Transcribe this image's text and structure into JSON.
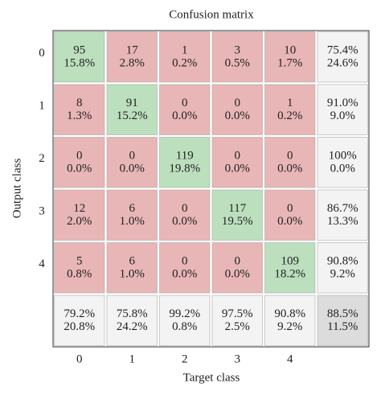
{
  "chart_data": {
    "type": "confusion_matrix",
    "title": "Confusion matrix",
    "xlabel": "Target class",
    "ylabel": "Output class",
    "categories": [
      "0",
      "1",
      "2",
      "3",
      "4"
    ],
    "values": [
      [
        95,
        17,
        1,
        3,
        10
      ],
      [
        8,
        91,
        0,
        0,
        1
      ],
      [
        0,
        0,
        119,
        0,
        0
      ],
      [
        12,
        6,
        0,
        117,
        0
      ],
      [
        5,
        6,
        0,
        0,
        109
      ]
    ],
    "percent": {
      "values": [
        [
          15.8,
          2.8,
          0.2,
          0.5,
          1.7
        ],
        [
          1.3,
          15.2,
          0.0,
          0.0,
          0.2
        ],
        [
          0.0,
          0.0,
          19.8,
          0.0,
          0.0
        ],
        [
          2.0,
          1.0,
          0.0,
          19.5,
          0.0
        ],
        [
          0.8,
          1.0,
          0.0,
          0.0,
          18.2
        ]
      ],
      "value_labels": [
        [
          "15.8%",
          "2.8%",
          "0.2%",
          "0.5%",
          "1.7%"
        ],
        [
          "1.3%",
          "15.2%",
          "0.0%",
          "0.0%",
          "0.2%"
        ],
        [
          "0.0%",
          "0.0%",
          "19.8%",
          "0.0%",
          "0.0%"
        ],
        [
          "2.0%",
          "1.0%",
          "0.0%",
          "19.5%",
          "0.0%"
        ],
        [
          "0.8%",
          "1.0%",
          "0.0%",
          "0.0%",
          "18.2%"
        ]
      ]
    },
    "row_summary": {
      "correct": {
        "values": [
          75.4,
          91.0,
          100,
          86.7,
          90.8
        ],
        "value_labels": [
          "75.4%",
          "91.0%",
          "100%",
          "86.7%",
          "90.8%"
        ]
      },
      "error": {
        "values": [
          24.6,
          9.0,
          0.0,
          13.3,
          9.2
        ],
        "value_labels": [
          "24.6%",
          "9.0%",
          "0.0%",
          "13.3%",
          "9.2%"
        ]
      }
    },
    "col_summary": {
      "correct": {
        "values": [
          79.2,
          75.8,
          99.2,
          97.5,
          90.8
        ],
        "value_labels": [
          "79.2%",
          "75.8%",
          "99.2%",
          "97.5%",
          "90.8%"
        ]
      },
      "error": {
        "values": [
          20.8,
          24.2,
          0.8,
          2.5,
          9.2
        ],
        "value_labels": [
          "20.8%",
          "24.2%",
          "0.8%",
          "2.5%",
          "9.2%"
        ]
      }
    },
    "overall": {
      "correct": {
        "value": 88.5,
        "label": "88.5%"
      },
      "error": {
        "value": 11.5,
        "label": "11.5%"
      }
    },
    "colors": {
      "correct": "#bcdfbe",
      "incorrect": "#e8b6b6",
      "summary": "#f3f3f3",
      "overall": "#dcdcdc",
      "correct_text": "#2f9b2f",
      "error_text": "#d2331f"
    }
  }
}
